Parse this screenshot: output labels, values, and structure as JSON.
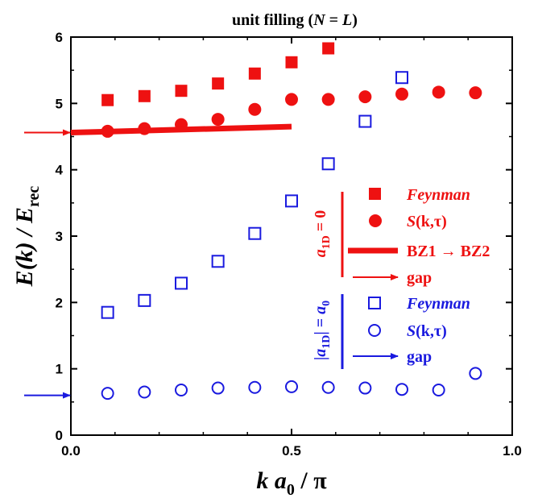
{
  "chart_data": {
    "type": "scatter",
    "title": "unit filling (N = L)",
    "title_parts": {
      "plain": "unit filling (",
      "N": "N",
      "eq": " = ",
      "L": "L",
      "close": ")"
    },
    "xlabel": {
      "k": "k",
      "a": "a",
      "sub": "0",
      "rest": " / π"
    },
    "ylabel": {
      "E": "E(k) / E",
      "sub": "rec"
    },
    "xlim": [
      0.0,
      1.0
    ],
    "ylim": [
      0.0,
      6.0
    ],
    "x_ticks": [
      0.0,
      0.5,
      1.0
    ],
    "x_tick_labels": [
      "0.0",
      "0.5",
      "1.0"
    ],
    "y_ticks": [
      0,
      1,
      2,
      3,
      4,
      5,
      6
    ],
    "y_tick_labels": [
      "0",
      "1",
      "2",
      "3",
      "4",
      "5",
      "6"
    ],
    "grid": false,
    "legend_position": "right",
    "colors": {
      "red": "#ee1111",
      "blue": "#1a1adf"
    },
    "series": [
      {
        "name": "Feynman",
        "group": "a1D = 0",
        "color": "#ee1111",
        "marker": "filled-square",
        "x": [
          0.0833,
          0.1667,
          0.25,
          0.3333,
          0.4167,
          0.5,
          0.5833
        ],
        "y": [
          5.05,
          5.11,
          5.19,
          5.3,
          5.45,
          5.62,
          5.83
        ]
      },
      {
        "name": "S(k,τ)",
        "group": "a1D = 0",
        "color": "#ee1111",
        "marker": "filled-circle",
        "x": [
          0.0833,
          0.1667,
          0.25,
          0.3333,
          0.4167,
          0.5,
          0.5833,
          0.6667,
          0.75,
          0.8333,
          0.9167
        ],
        "y": [
          4.58,
          4.62,
          4.68,
          4.76,
          4.91,
          5.06,
          5.06,
          5.1,
          5.14,
          5.17,
          5.16
        ]
      },
      {
        "name": "BZ1 → BZ2",
        "group": "a1D = 0",
        "color": "#ee1111",
        "marker": "thick-line",
        "x": [
          0.0,
          0.5
        ],
        "y": [
          4.56,
          4.65
        ]
      },
      {
        "name": "Feynman",
        "group": "|a1D| = a0",
        "color": "#1a1adf",
        "marker": "open-square",
        "x": [
          0.0833,
          0.1667,
          0.25,
          0.3333,
          0.4167,
          0.5,
          0.5833,
          0.6667,
          0.75
        ],
        "y": [
          1.85,
          2.03,
          2.29,
          2.62,
          3.04,
          3.53,
          4.09,
          4.73,
          5.39
        ]
      },
      {
        "name": "S(k,τ)",
        "group": "|a1D| = a0",
        "color": "#1a1adf",
        "marker": "open-circle",
        "x": [
          0.0833,
          0.1667,
          0.25,
          0.3333,
          0.4167,
          0.5,
          0.5833,
          0.6667,
          0.75,
          0.8333,
          0.9167
        ],
        "y": [
          0.63,
          0.65,
          0.68,
          0.71,
          0.72,
          0.73,
          0.72,
          0.71,
          0.69,
          0.68,
          0.93
        ]
      }
    ],
    "gap_arrows": [
      {
        "name": "gap",
        "color": "#ee1111",
        "y": 4.56
      },
      {
        "name": "gap",
        "color": "#1a1adf",
        "y": 0.6
      }
    ],
    "legend": {
      "red_group": {
        "a": "a",
        "sub": "1D",
        "rest": " = 0"
      },
      "blue_group": {
        "bar": "|",
        "a": "a",
        "sub": "1D",
        "bar2": "|",
        "eq": " = ",
        "a0": "a",
        "sub0": "0"
      },
      "entries": [
        {
          "label": "Feynman",
          "color": "#ee1111",
          "marker": "filled-square",
          "italic": true
        },
        {
          "label_main": "S",
          "label_rest": "(k,τ)",
          "color": "#ee1111",
          "marker": "filled-circle"
        },
        {
          "label": "BZ1 → BZ2",
          "color": "#ee1111",
          "marker": "thick-line",
          "italic": false
        },
        {
          "label": "gap",
          "color": "#ee1111",
          "marker": "arrow",
          "italic": false
        },
        {
          "label": "Feynman",
          "color": "#1a1adf",
          "marker": "open-square",
          "italic": true
        },
        {
          "label_main": "S",
          "label_rest": "(k,τ)",
          "color": "#1a1adf",
          "marker": "open-circle"
        },
        {
          "label": "gap",
          "color": "#1a1adf",
          "marker": "arrow",
          "italic": false
        }
      ]
    }
  }
}
